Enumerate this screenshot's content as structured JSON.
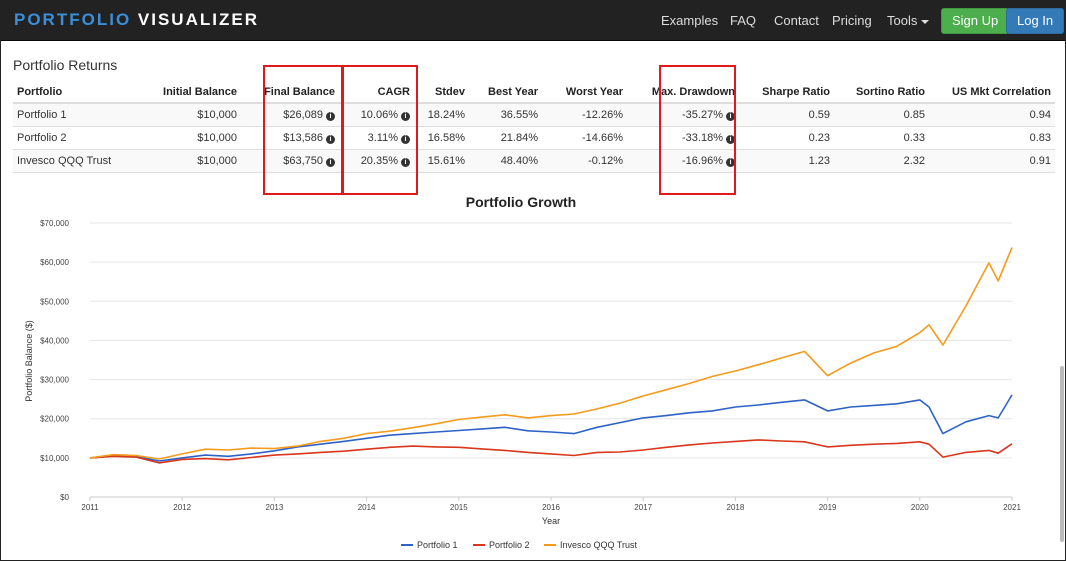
{
  "navbar": {
    "brand_part1": "PORTFOLIO",
    "brand_part2": "VISUALIZER",
    "links": [
      "Examples",
      "FAQ",
      "Contact",
      "Pricing",
      "Tools"
    ],
    "signup_label": "Sign Up",
    "login_label": "Log In",
    "brand_color": "#3a8fd8"
  },
  "returns": {
    "title": "Portfolio Returns",
    "headers": [
      "Portfolio",
      "Initial Balance",
      "Final Balance",
      "CAGR",
      "Stdev",
      "Best Year",
      "Worst Year",
      "Max. Drawdown",
      "Sharpe Ratio",
      "Sortino Ratio",
      "US Mkt Correlation"
    ],
    "rows": [
      [
        "Portfolio 1",
        "$10,000",
        "$26,089",
        "10.06%",
        "18.24%",
        "36.55%",
        "-12.26%",
        "-35.27%",
        "0.59",
        "0.85",
        "0.94"
      ],
      [
        "Portfolio 2",
        "$10,000",
        "$13,586",
        "3.11%",
        "16.58%",
        "21.84%",
        "-14.66%",
        "-33.18%",
        "0.23",
        "0.33",
        "0.83"
      ],
      [
        "Invesco QQQ Trust",
        "$10,000",
        "$63,750",
        "20.35%",
        "15.61%",
        "48.40%",
        "-0.12%",
        "-16.96%",
        "1.23",
        "2.32",
        "0.91"
      ]
    ]
  },
  "chart_data": {
    "type": "line",
    "title": "Portfolio Growth",
    "xlabel": "Year",
    "ylabel": "Portfolio Balance ($)",
    "xlim": [
      2011,
      2021
    ],
    "ylim": [
      0,
      70000
    ],
    "x_ticks": [
      2011,
      2012,
      2013,
      2014,
      2015,
      2016,
      2017,
      2018,
      2019,
      2020,
      2021
    ],
    "y_ticks": [
      0,
      10000,
      20000,
      30000,
      40000,
      50000,
      60000,
      70000
    ],
    "y_tick_labels": [
      "$0",
      "$10,000",
      "$20,000",
      "$30,000",
      "$40,000",
      "$50,000",
      "$60,000",
      "$70,000"
    ],
    "grid": true,
    "legend_position": "bottom-center",
    "series": [
      {
        "name": "Portfolio 1",
        "color": "#2e62c6",
        "x": [
          2011,
          2011.25,
          2011.5,
          2011.75,
          2012,
          2012.25,
          2012.5,
          2012.75,
          2013,
          2013.25,
          2013.5,
          2013.75,
          2014,
          2014.25,
          2014.5,
          2014.75,
          2015,
          2015.25,
          2015.5,
          2015.75,
          2016,
          2016.25,
          2016.5,
          2016.75,
          2017,
          2017.25,
          2017.5,
          2017.75,
          2018,
          2018.25,
          2018.5,
          2018.75,
          2019,
          2019.25,
          2019.5,
          2019.75,
          2020,
          2020.1,
          2020.25,
          2020.5,
          2020.75,
          2020.85,
          2021
        ],
        "values": [
          10000,
          10500,
          10300,
          9200,
          10000,
          10700,
          10400,
          11000,
          11800,
          12800,
          13500,
          14200,
          15000,
          15800,
          16200,
          16600,
          17000,
          17400,
          17800,
          16900,
          16600,
          16200,
          17800,
          19000,
          20200,
          20800,
          21500,
          22000,
          23000,
          23500,
          24200,
          24800,
          22000,
          23000,
          23400,
          23800,
          24800,
          23000,
          16200,
          19200,
          20800,
          20200,
          26089
        ]
      },
      {
        "name": "Portfolio 2",
        "color": "#d9361c",
        "x": [
          2011,
          2011.25,
          2011.5,
          2011.75,
          2012,
          2012.25,
          2012.5,
          2012.75,
          2013,
          2013.25,
          2013.5,
          2013.75,
          2014,
          2014.25,
          2014.5,
          2014.75,
          2015,
          2015.25,
          2015.5,
          2015.75,
          2016,
          2016.25,
          2016.5,
          2016.75,
          2017,
          2017.25,
          2017.5,
          2017.75,
          2018,
          2018.25,
          2018.5,
          2018.75,
          2019,
          2019.25,
          2019.5,
          2019.75,
          2020,
          2020.1,
          2020.25,
          2020.5,
          2020.75,
          2020.85,
          2021
        ],
        "values": [
          10000,
          10400,
          10200,
          8700,
          9600,
          9800,
          9500,
          10100,
          10700,
          11000,
          11400,
          11700,
          12200,
          12700,
          13000,
          12800,
          12700,
          12300,
          11900,
          11400,
          11000,
          10600,
          11400,
          11500,
          12000,
          12700,
          13300,
          13800,
          14200,
          14600,
          14300,
          14100,
          12800,
          13200,
          13500,
          13700,
          14100,
          13500,
          10200,
          11400,
          11900,
          11200,
          13586
        ]
      },
      {
        "name": "Invesco QQQ Trust",
        "color": "#f59a1b",
        "x": [
          2011,
          2011.25,
          2011.5,
          2011.75,
          2012,
          2012.25,
          2012.5,
          2012.75,
          2013,
          2013.25,
          2013.5,
          2013.75,
          2014,
          2014.25,
          2014.5,
          2014.75,
          2015,
          2015.25,
          2015.5,
          2015.75,
          2016,
          2016.25,
          2016.5,
          2016.75,
          2017,
          2017.25,
          2017.5,
          2017.75,
          2018,
          2018.25,
          2018.5,
          2018.75,
          2019,
          2019.25,
          2019.5,
          2019.75,
          2020,
          2020.1,
          2020.25,
          2020.5,
          2020.75,
          2020.85,
          2021
        ],
        "values": [
          10000,
          10800,
          10600,
          9700,
          11000,
          12200,
          12000,
          12500,
          12400,
          13000,
          14200,
          15000,
          16200,
          16800,
          17700,
          18700,
          19800,
          20400,
          21000,
          20200,
          20800,
          21200,
          22500,
          24000,
          25800,
          27400,
          29000,
          30800,
          32200,
          33800,
          35500,
          37200,
          31000,
          34200,
          36800,
          38500,
          42000,
          44000,
          38800,
          48800,
          59800,
          55200,
          63750
        ]
      }
    ]
  }
}
